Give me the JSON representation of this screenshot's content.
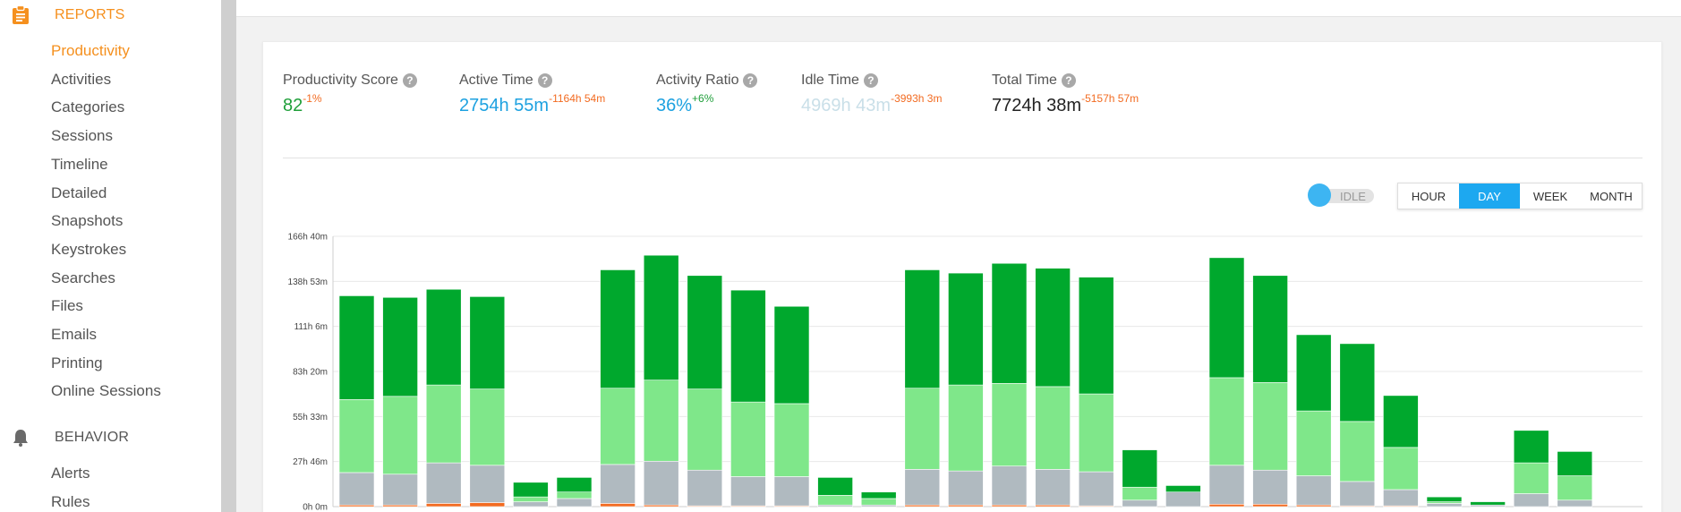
{
  "sidebar": {
    "reports_header": "REPORTS",
    "reports_items": [
      {
        "label": "Productivity",
        "active": true
      },
      {
        "label": "Activities",
        "active": false
      },
      {
        "label": "Categories",
        "active": false
      },
      {
        "label": "Sessions",
        "active": false
      },
      {
        "label": "Timeline",
        "active": false
      },
      {
        "label": "Detailed",
        "active": false
      },
      {
        "label": "Snapshots",
        "active": false
      },
      {
        "label": "Keystrokes",
        "active": false
      },
      {
        "label": "Searches",
        "active": false
      },
      {
        "label": "Files",
        "active": false
      },
      {
        "label": "Emails",
        "active": false
      },
      {
        "label": "Printing",
        "active": false
      },
      {
        "label": "Online Sessions",
        "active": false
      }
    ],
    "behavior_header": "BEHAVIOR",
    "behavior_items": [
      {
        "label": "Alerts",
        "active": false
      },
      {
        "label": "Rules",
        "active": false
      }
    ]
  },
  "metrics": [
    {
      "label": "Productivity Score",
      "value": "82",
      "delta": "-1%",
      "value_color": "#1f9f3a",
      "delta_color": "#f26b21"
    },
    {
      "label": "Active Time",
      "value": "2754h 55m",
      "delta": "-1164h 54m",
      "value_color": "#1da1e0",
      "delta_color": "#f26b21"
    },
    {
      "label": "Activity Ratio",
      "value": "36%",
      "delta": "+6%",
      "value_color": "#1da1e0",
      "delta_color": "#1f9f3a"
    },
    {
      "label": "Idle Time",
      "value": "4969h 43m",
      "delta": "-3993h 3m",
      "value_color": "#c9dfe8",
      "delta_color": "#f26b21"
    },
    {
      "label": "Total Time",
      "value": "7724h 38m",
      "delta": "-5157h 57m",
      "value_color": "#222222",
      "delta_color": "#f26b21"
    }
  ],
  "controls": {
    "idle_toggle_label": "IDLE",
    "range_buttons": [
      "HOUR",
      "DAY",
      "WEEK",
      "MONTH"
    ],
    "selected_range": "DAY"
  },
  "colors": {
    "accent_orange": "#f5901e",
    "selected_blue": "#1da8f0",
    "productive": "#00a82d",
    "neutral_productive": "#7fe78a",
    "idle": "#b0bac0",
    "unproductive": "#f26b21"
  },
  "chart_data": {
    "type": "bar",
    "stacked": true,
    "y_tick_labels": [
      "0h 0m",
      "27h 46m",
      "55h 33m",
      "83h 20m",
      "111h 6m",
      "138h 53m",
      "166h 40m"
    ],
    "ylim": [
      0,
      166.67
    ],
    "grid": true,
    "series": [
      {
        "color": "#f26b21",
        "values": [
          1,
          1,
          2,
          2.5,
          0,
          0,
          2,
          1,
          0.5,
          0.5,
          0.5,
          0,
          0,
          1,
          1,
          1,
          1,
          0.5,
          0,
          0,
          1.5,
          1.5,
          1,
          0.5,
          0.5,
          0,
          0,
          0,
          0
        ]
      },
      {
        "color": "#b0bac0",
        "values": [
          20,
          19,
          25,
          23,
          3,
          5,
          24,
          27,
          22,
          18,
          18,
          1,
          1,
          22,
          21,
          24,
          22,
          21,
          4,
          9,
          24,
          21,
          18,
          15,
          10,
          2,
          1,
          8,
          4
        ]
      },
      {
        "color": "#7fe78a",
        "values": [
          45,
          48,
          48,
          47,
          3,
          4,
          47,
          50,
          50,
          46,
          45,
          6,
          4,
          50,
          53,
          51,
          51,
          48,
          8,
          0,
          54,
          54,
          40,
          37,
          26,
          1,
          0,
          19,
          15
        ]
      },
      {
        "color": "#00a82d",
        "values": [
          64,
          61,
          59,
          57,
          9,
          9,
          73,
          77,
          70,
          69,
          60,
          11,
          4,
          73,
          69,
          74,
          73,
          72,
          23,
          4,
          74,
          66,
          47,
          48,
          32,
          3,
          2,
          20,
          15
        ]
      }
    ]
  }
}
